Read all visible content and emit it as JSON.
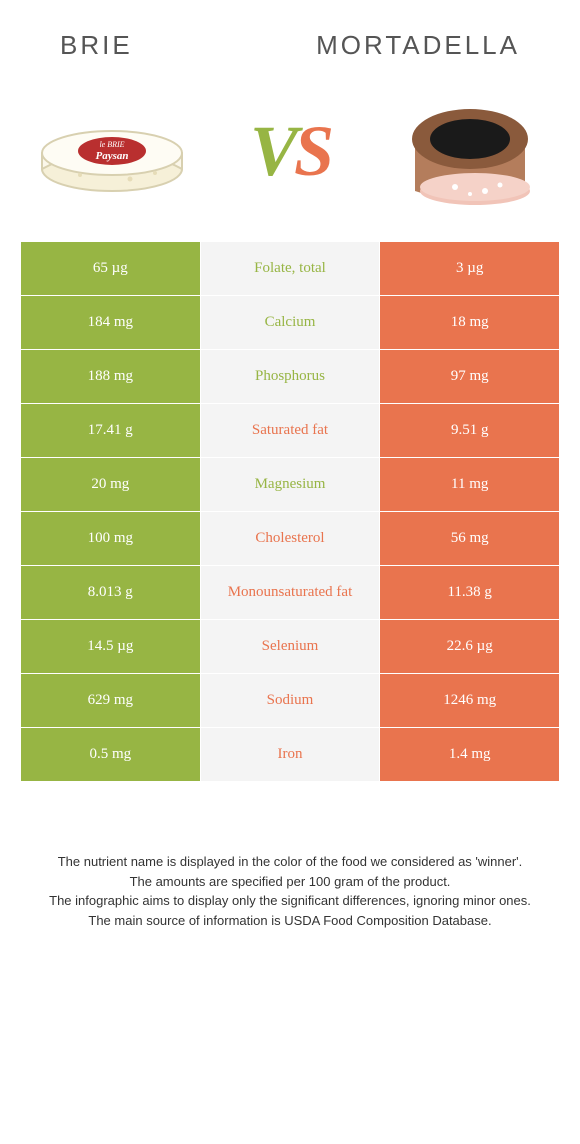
{
  "colors": {
    "left": "#97b544",
    "right": "#e9744e",
    "mid_bg": "#f4f4f4",
    "page_bg": "#ffffff",
    "heading": "#555555",
    "foot_text": "#333333"
  },
  "typography": {
    "heading_fontsize": 26,
    "vs_fontsize": 72,
    "cell_fontsize": 15,
    "foot_fontsize": 13
  },
  "left_name": "Brie",
  "right_name": "Mortadella",
  "vs_v": "V",
  "vs_s": "S",
  "rows": [
    {
      "left": "65 µg",
      "label": "Folate, total",
      "right": "3 µg",
      "winner": "left"
    },
    {
      "left": "184 mg",
      "label": "Calcium",
      "right": "18 mg",
      "winner": "left"
    },
    {
      "left": "188 mg",
      "label": "Phosphorus",
      "right": "97 mg",
      "winner": "left"
    },
    {
      "left": "17.41 g",
      "label": "Saturated fat",
      "right": "9.51 g",
      "winner": "right"
    },
    {
      "left": "20 mg",
      "label": "Magnesium",
      "right": "11 mg",
      "winner": "left"
    },
    {
      "left": "100 mg",
      "label": "Cholesterol",
      "right": "56 mg",
      "winner": "right"
    },
    {
      "left": "8.013 g",
      "label": "Monounsaturated fat",
      "right": "11.38 g",
      "winner": "right"
    },
    {
      "left": "14.5 µg",
      "label": "Selenium",
      "right": "22.6 µg",
      "winner": "right"
    },
    {
      "left": "629 mg",
      "label": "Sodium",
      "right": "1246 mg",
      "winner": "right"
    },
    {
      "left": "0.5 mg",
      "label": "Iron",
      "right": "1.4 mg",
      "winner": "right"
    }
  ],
  "footnote": {
    "l1": "The nutrient name is displayed in the color of the food we considered as 'winner'.",
    "l2": "The amounts are specified per 100 gram of the product.",
    "l3": "The infographic aims to display only the significant differences, ignoring minor ones.",
    "l4": "The main source of information is USDA Food Composition Database."
  }
}
